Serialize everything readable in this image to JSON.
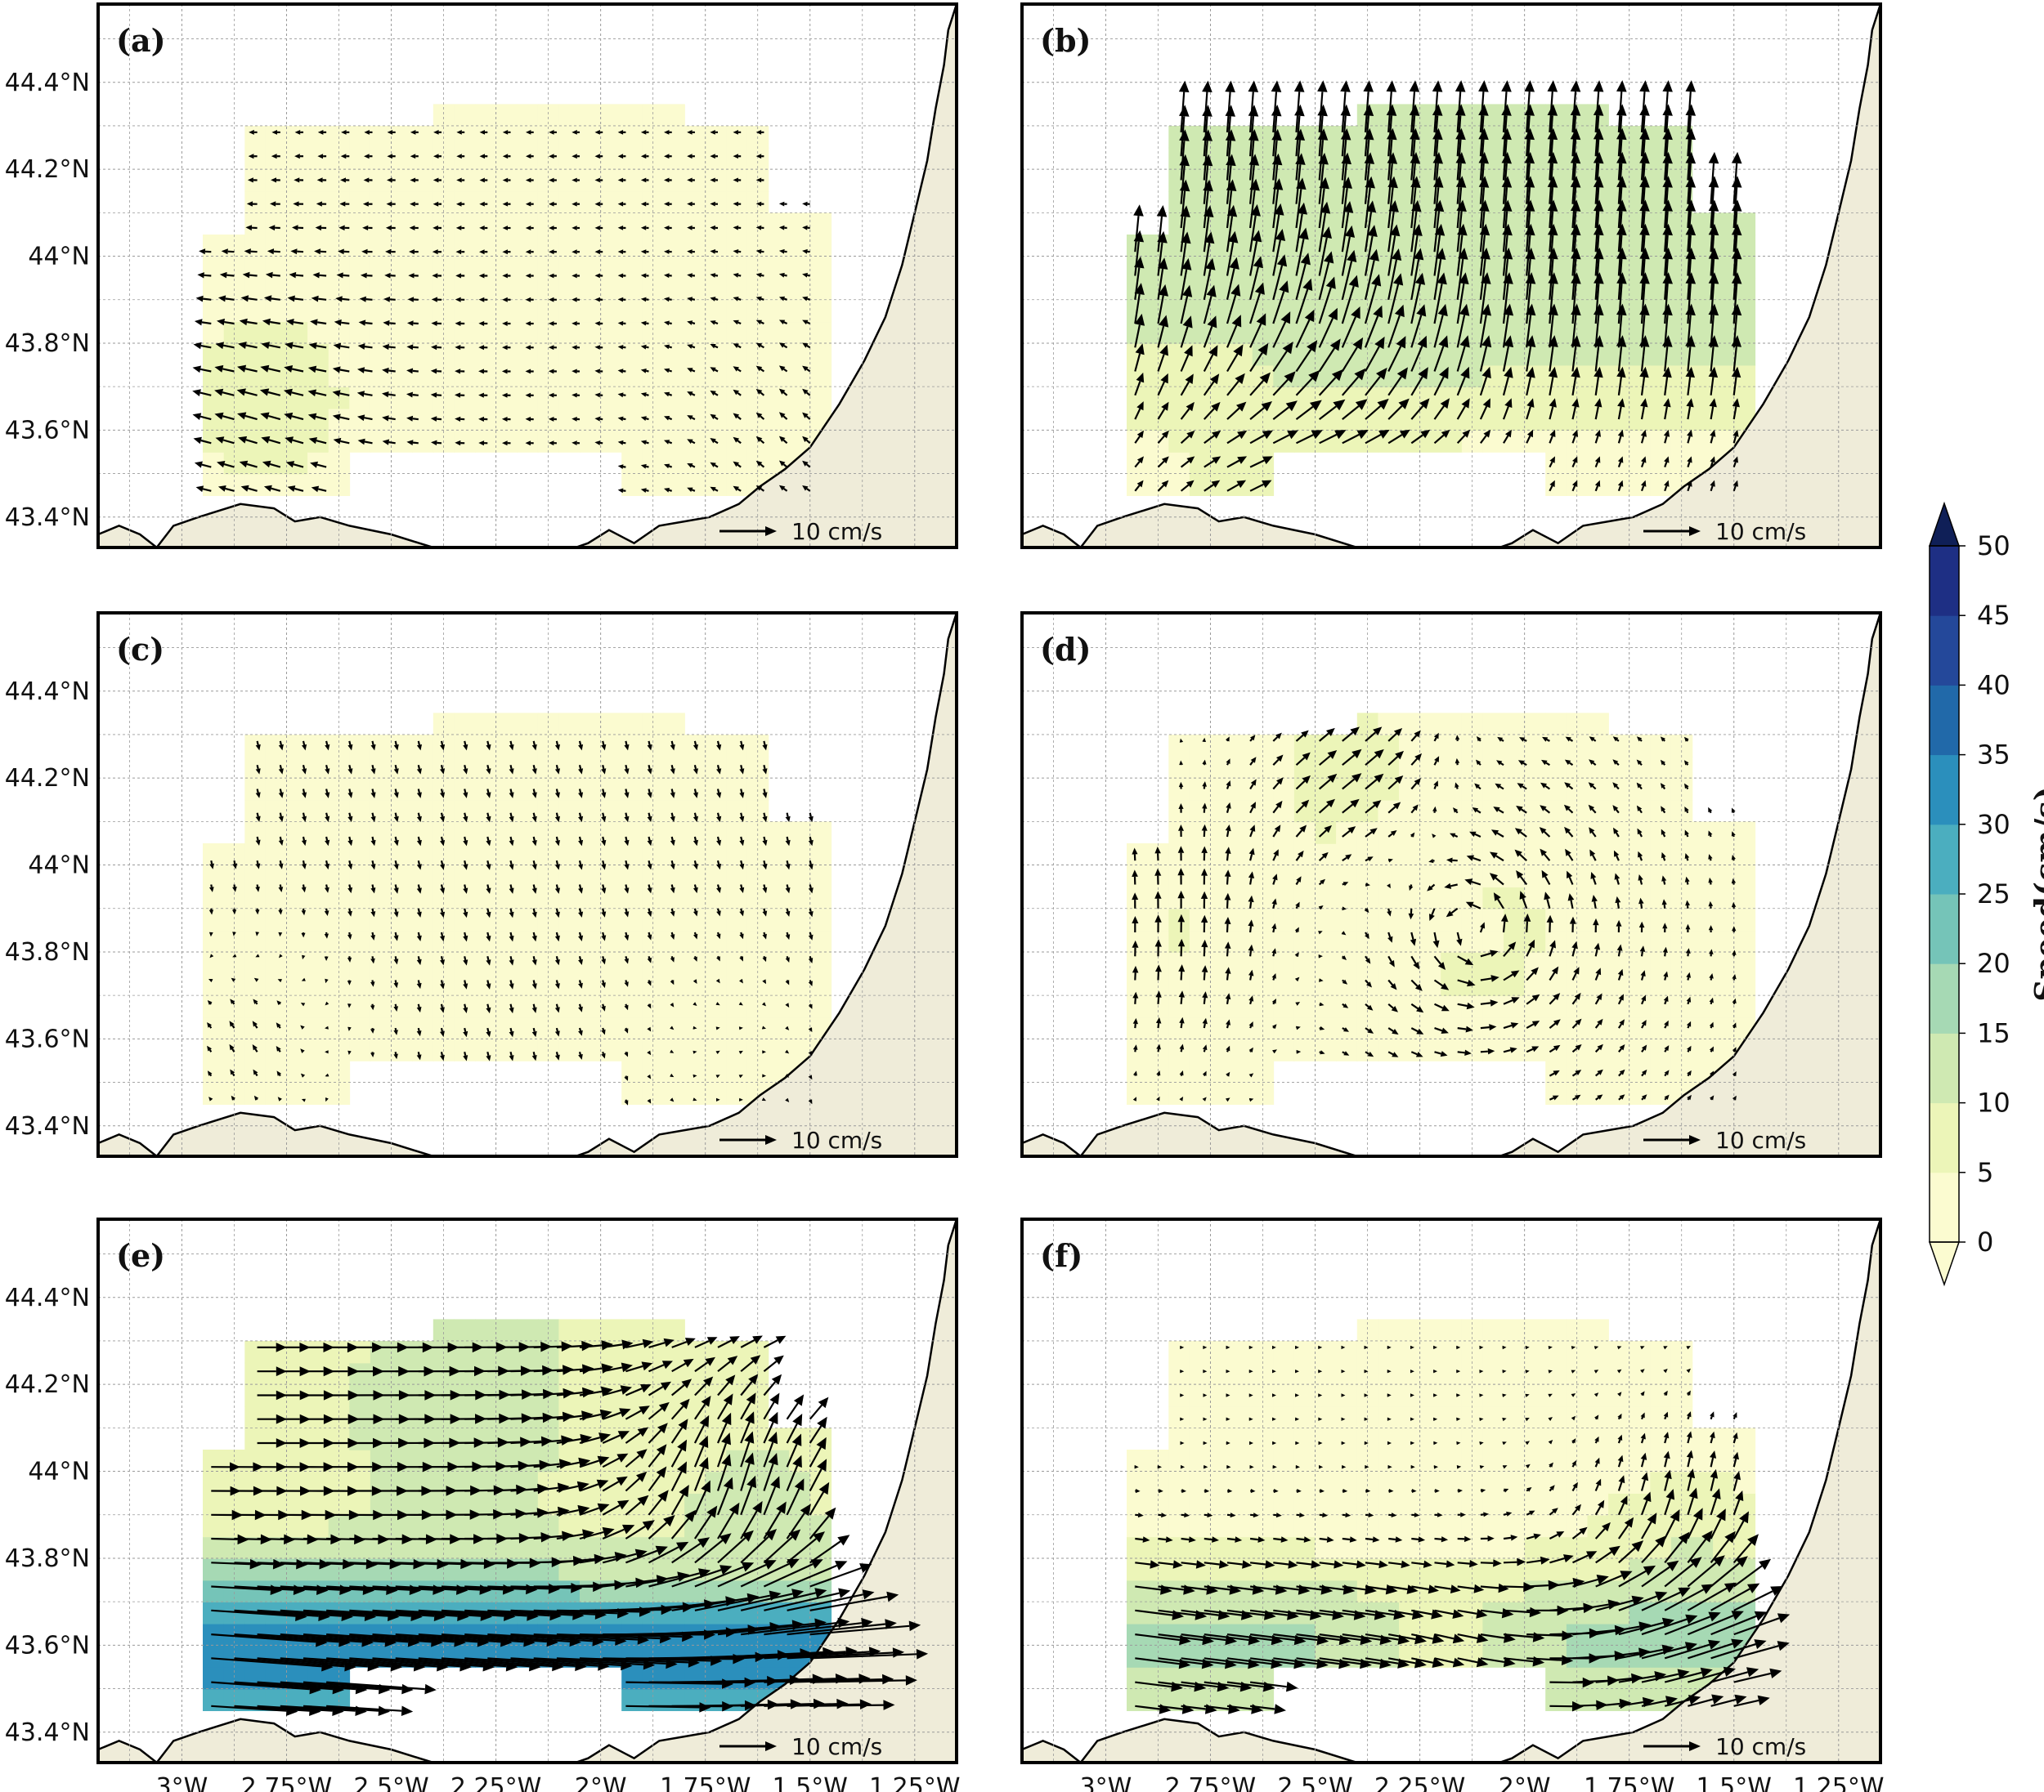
{
  "figure": {
    "panels": [
      {
        "id": "a",
        "label": "(a)",
        "pattern": "weak-west"
      },
      {
        "id": "b",
        "label": "(b)",
        "pattern": "north-strong"
      },
      {
        "id": "c",
        "label": "(c)",
        "pattern": "weak-south"
      },
      {
        "id": "d",
        "label": "(d)",
        "pattern": "cyclonic"
      },
      {
        "id": "e",
        "label": "(e)",
        "pattern": "jet-east"
      },
      {
        "id": "f",
        "label": "(f)",
        "pattern": "anticyclonic"
      }
    ],
    "map_extent": {
      "lon_min": -3.2,
      "lon_max": -1.15,
      "lat_min": 43.33,
      "lat_max": 44.58
    },
    "lat_ticks": [
      {
        "value": 43.4,
        "label": "43.4°N"
      },
      {
        "value": 43.6,
        "label": "43.6°N"
      },
      {
        "value": 43.8,
        "label": "43.8°N"
      },
      {
        "value": 44.0,
        "label": "44°N"
      },
      {
        "value": 44.2,
        "label": "44.2°N"
      },
      {
        "value": 44.4,
        "label": "44.4°N"
      }
    ],
    "lon_ticks": [
      {
        "value": -3.0,
        "label": "3°W"
      },
      {
        "value": -2.75,
        "label": "2.75°W"
      },
      {
        "value": -2.5,
        "label": "2.5°W"
      },
      {
        "value": -2.25,
        "label": "2.25°W"
      },
      {
        "value": -2.0,
        "label": "2°W"
      },
      {
        "value": -1.75,
        "label": "1.75°W"
      },
      {
        "value": -1.5,
        "label": "1.5°W"
      },
      {
        "value": -1.25,
        "label": "1.25°W"
      }
    ],
    "reference_vector": {
      "label": "10 cm/s",
      "speed": 10
    },
    "colorbar": {
      "title": "Speed(cm/s)",
      "levels": [
        0,
        5,
        10,
        15,
        20,
        25,
        30,
        35,
        40,
        45,
        50
      ],
      "colors": [
        "#fbfbd0",
        "#ecf5b8",
        "#cfe9b2",
        "#a6d9b4",
        "#75c4b8",
        "#4baebf",
        "#2b8fbc",
        "#2169a9",
        "#24489a",
        "#1e2f84",
        "#0f1f57"
      ],
      "extend": "both"
    },
    "colors": {
      "land": "#efecd9",
      "coast": "#000000",
      "grid": "#9a9a9a",
      "arrow": "#000000"
    }
  }
}
